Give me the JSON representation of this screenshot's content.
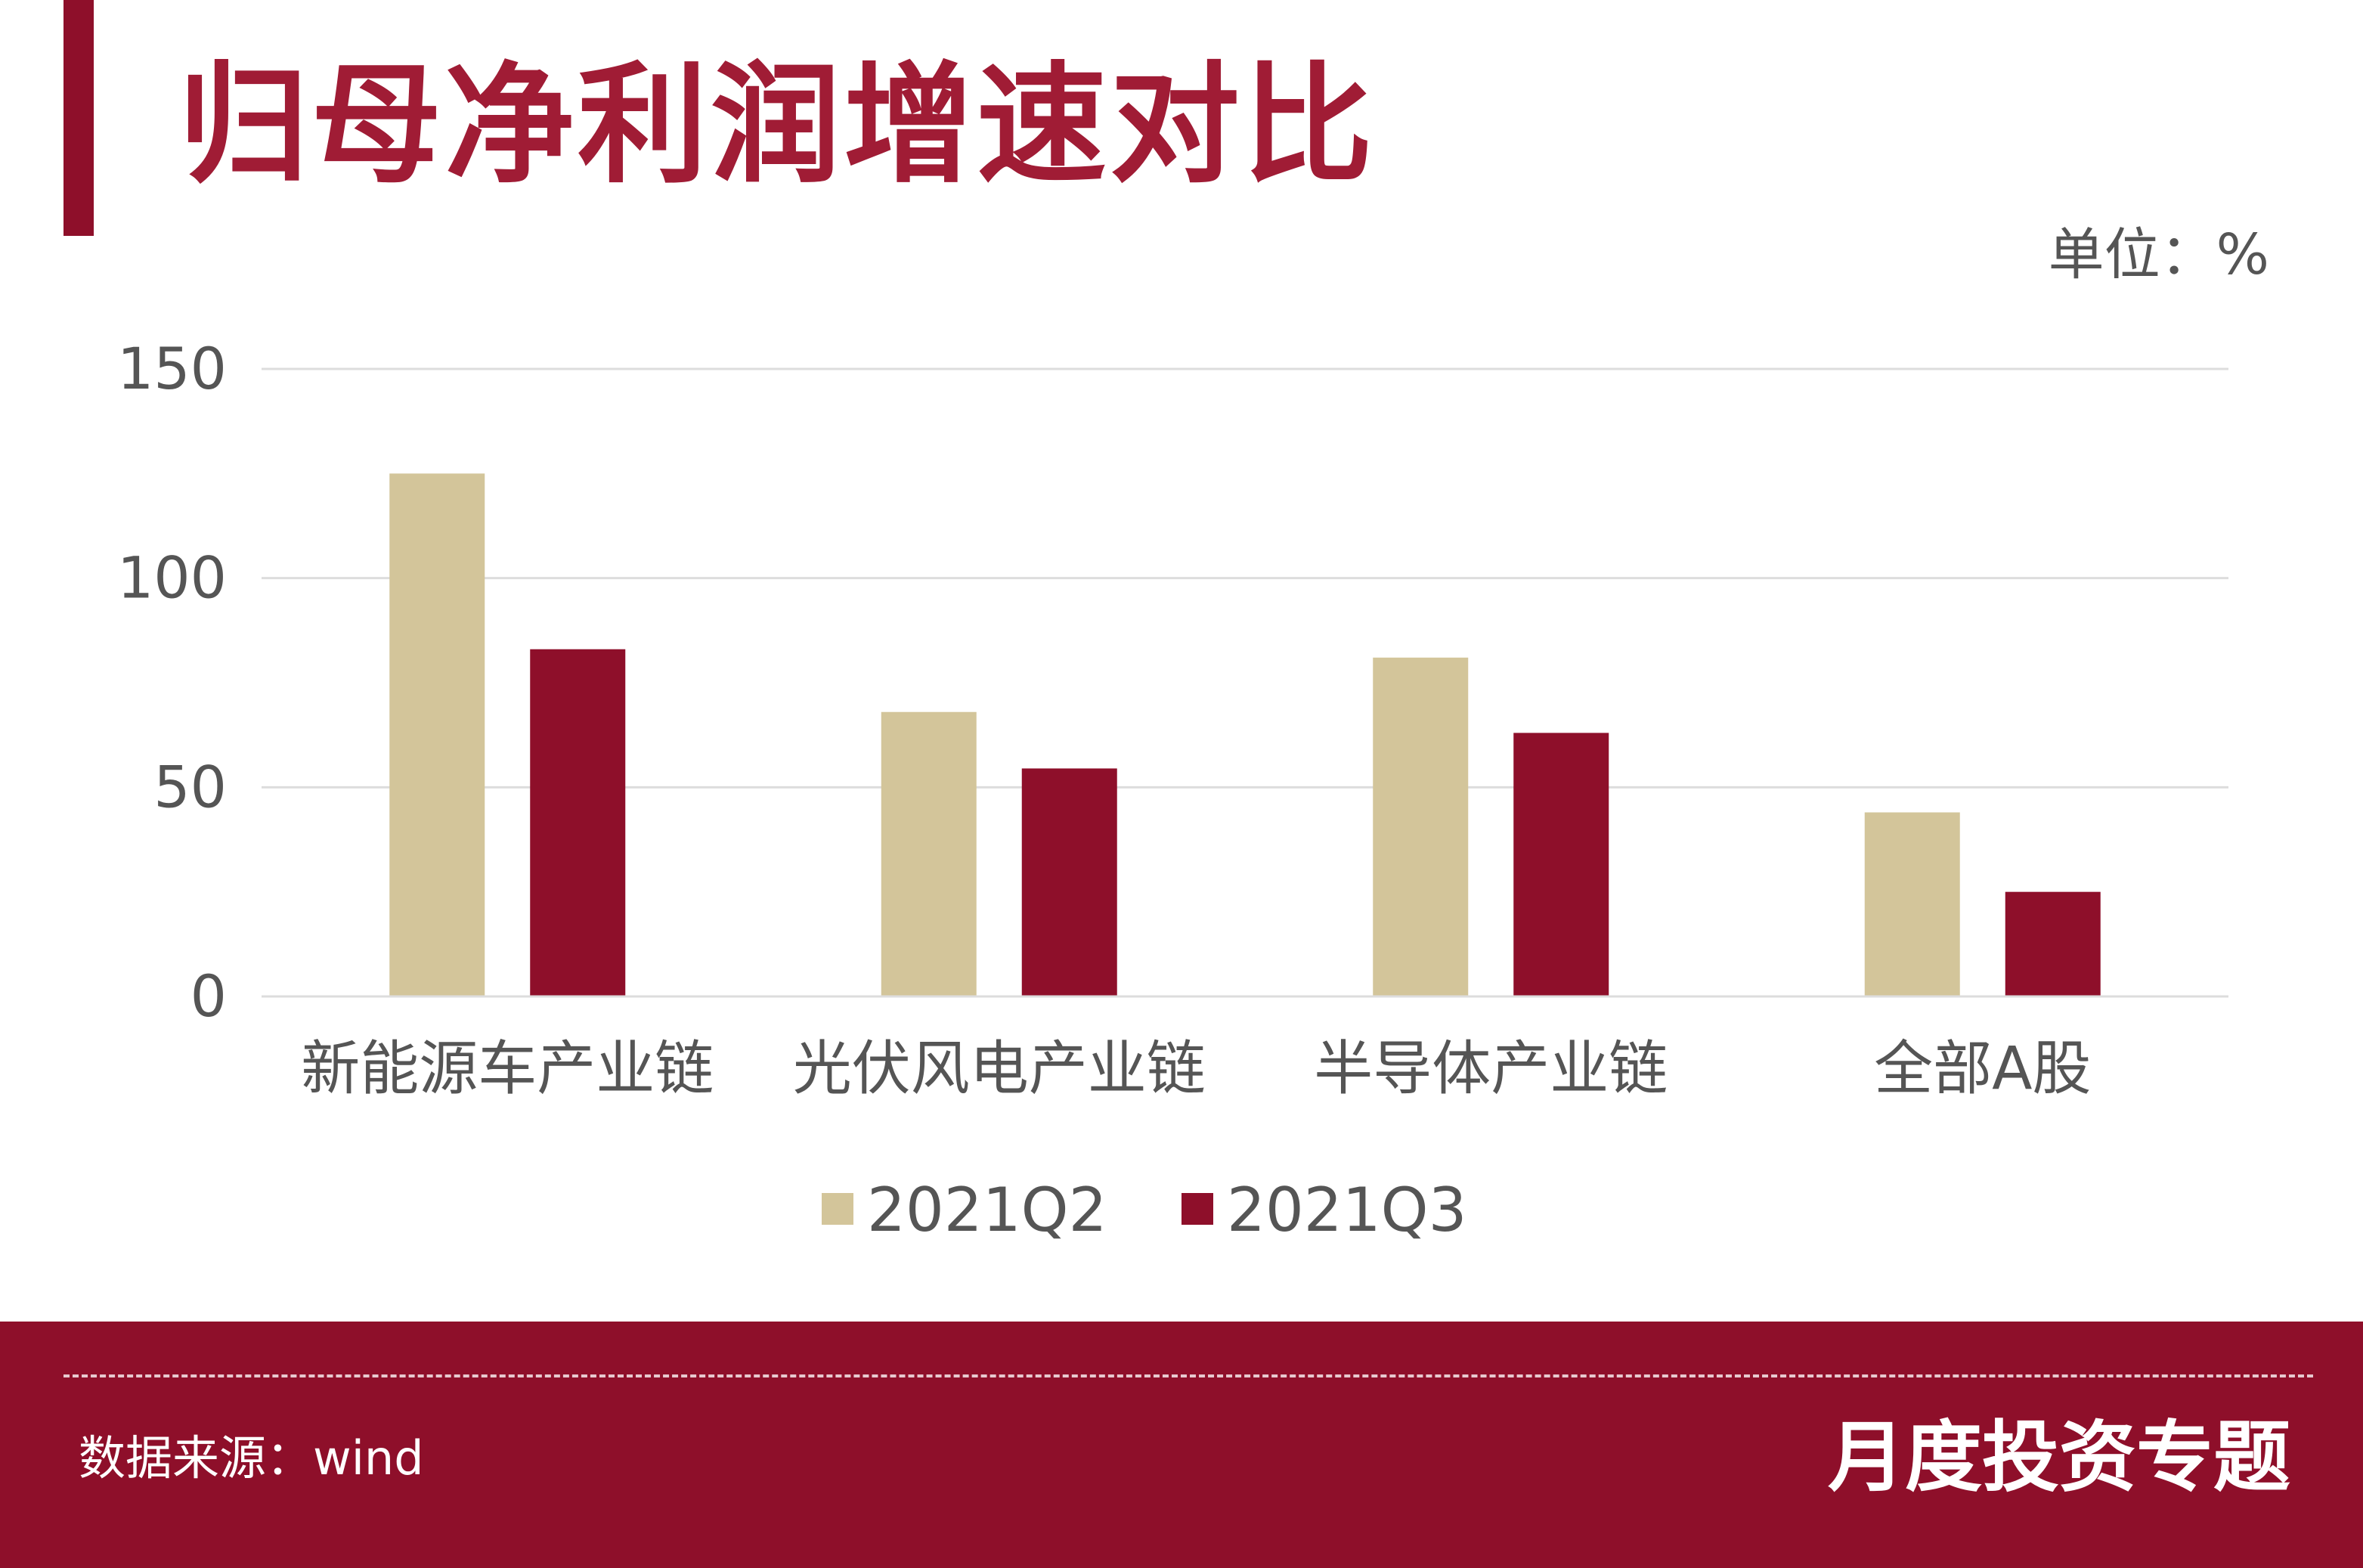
{
  "title": "归母净利润增速对比",
  "unit_label": "单位：%",
  "footer": {
    "source": "数据来源：wind",
    "brand": "月度投资专题"
  },
  "colors": {
    "accent": "#8e0f2a",
    "series_q2": "#d3c59a",
    "series_q3": "#8e0f2a",
    "grid": "#dddddd",
    "axis_text": "#555555"
  },
  "chart_data": {
    "type": "bar",
    "title": "归母净利润增速对比",
    "xlabel": "",
    "ylabel": "单位：%",
    "ylim": [
      0,
      150
    ],
    "yticks": [
      0,
      50,
      100,
      150
    ],
    "grid": true,
    "legend_position": "bottom-center",
    "categories": [
      "新能源车产业链",
      "光伏风电产业链",
      "半导体产业链",
      "全部A股"
    ],
    "series": [
      {
        "name": "2021Q2",
        "color": "#d3c59a",
        "values": [
          125,
          68,
          81,
          44
        ]
      },
      {
        "name": "2021Q3",
        "color": "#8e0f2a",
        "values": [
          83,
          54.5,
          63,
          25
        ]
      }
    ]
  }
}
